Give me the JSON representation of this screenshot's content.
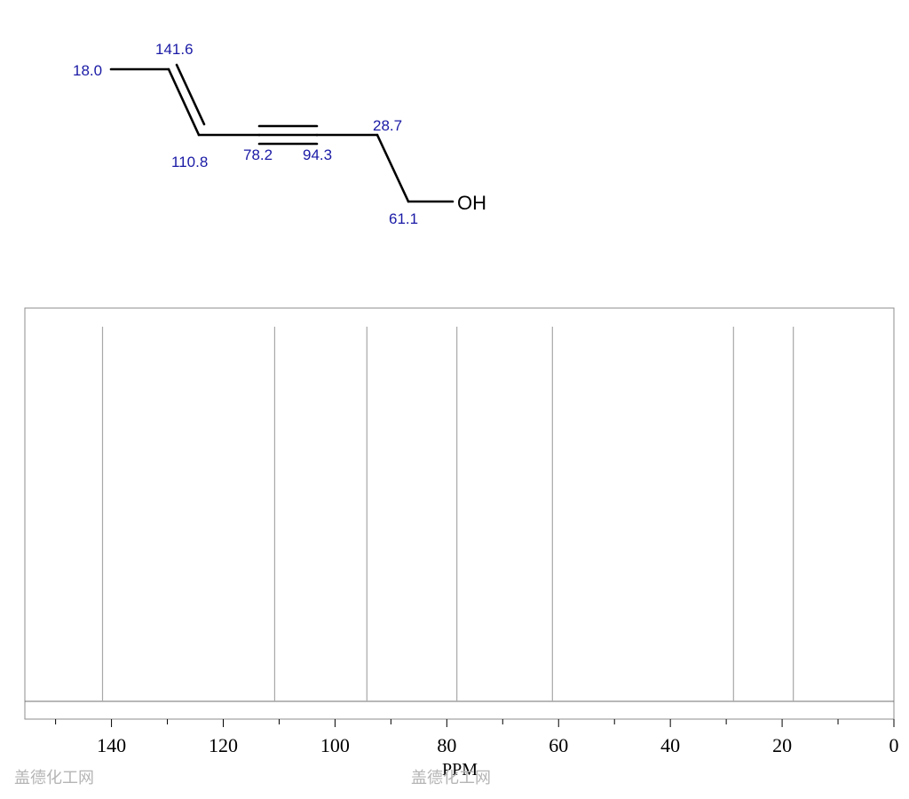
{
  "molecule": {
    "shift_labels": [
      {
        "atom": "C1",
        "text": "18.0"
      },
      {
        "atom": "C2",
        "text": "141.6"
      },
      {
        "atom": "C3",
        "text": "110.8"
      },
      {
        "atom": "C4",
        "text": "78.2"
      },
      {
        "atom": "C5",
        "text": "94.3"
      },
      {
        "atom": "C6",
        "text": "28.7"
      },
      {
        "atom": "C7",
        "text": "61.1"
      }
    ],
    "hydroxyl_label": "OH",
    "colors": {
      "bond": "#000000",
      "shift_label": "#1a1aa6",
      "atom_label": "#000000"
    }
  },
  "chart_data": {
    "type": "bar",
    "title": "",
    "xlabel": "PPM",
    "ylabel": "",
    "x_reversed": true,
    "xlim": [
      155.5,
      0
    ],
    "peaks": [
      141.6,
      110.8,
      94.3,
      78.2,
      61.1,
      28.7,
      18.0
    ],
    "major_ticks": [
      140,
      120,
      100,
      80,
      60,
      40,
      20,
      0
    ],
    "minor_ticks": [
      150,
      130,
      110,
      90,
      70,
      50,
      30,
      10
    ],
    "major_tick_labels": [
      "140",
      "120",
      "100",
      "80",
      "60",
      "40",
      "20",
      "0"
    ],
    "grid": false,
    "colors": {
      "peak": "#a8a8a8",
      "frame": "#8c8c8c",
      "tick": "#000000"
    }
  },
  "watermarks": [
    "盖德化工网",
    "盖德化工网"
  ]
}
